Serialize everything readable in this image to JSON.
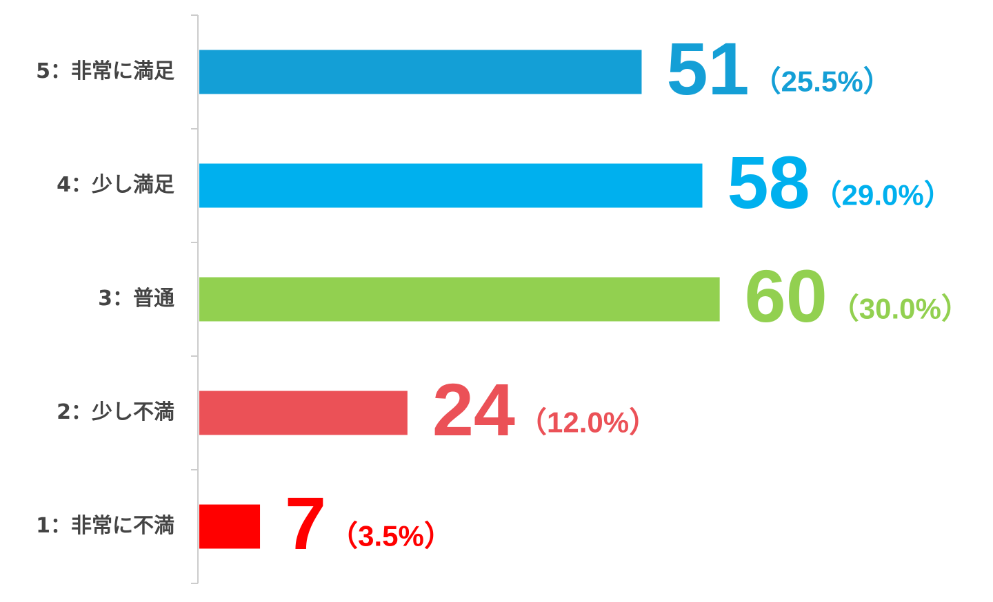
{
  "chart_data": {
    "type": "barh",
    "categories": [
      "5：非常に満足",
      "4：少し満足",
      "3：普通",
      "2：少し不満",
      "1：非常に不満"
    ],
    "values": [
      51,
      58,
      60,
      24,
      7
    ],
    "share_labels": [
      "（25.5%）",
      "（29.0%）",
      "（30.0%）",
      "（12.0%）",
      "（3.5%）"
    ],
    "colors": [
      "#149fd6",
      "#00b0ee",
      "#92d050",
      "#eb5157",
      "#ff0000"
    ],
    "xlim": [
      0,
      90
    ]
  }
}
